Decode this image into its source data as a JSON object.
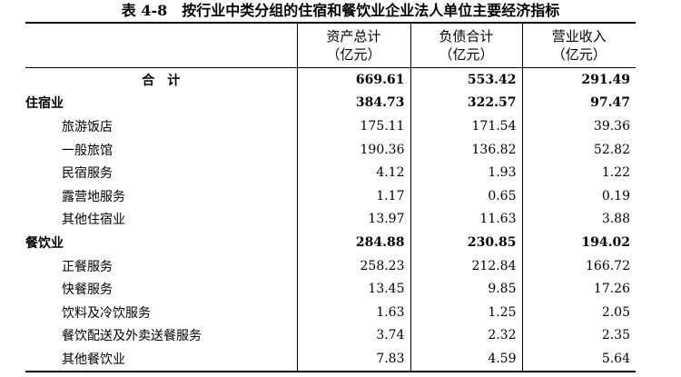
{
  "header": {
    "title": "表 4-8　按行业中类分组的住宿和餐饮业企业法人单位主要经济指标"
  },
  "table": {
    "columns": [
      [
        "资产总计",
        "（亿元）"
      ],
      [
        "负债合计",
        "（亿元）"
      ],
      [
        "营业收入",
        "（亿元）"
      ]
    ],
    "rows": [
      [
        "合　计",
        "669.61",
        "553.42",
        "291.49"
      ],
      [
        "住宿业",
        "384.73",
        "322.57",
        "97.47"
      ],
      [
        "旅游饭店",
        "175.11",
        "171.54",
        "39.36"
      ],
      [
        "一般旅馆",
        "190.36",
        "136.82",
        "52.82"
      ],
      [
        "民宿服务",
        "4.12",
        "1.93",
        "1.22"
      ],
      [
        "露营地服务",
        "1.17",
        "0.65",
        "0.19"
      ],
      [
        "其他住宿业",
        "13.97",
        "11.63",
        "3.88"
      ],
      [
        "餐饮业",
        "284.88",
        "230.85",
        "194.02"
      ],
      [
        "正餐服务",
        "258.23",
        "212.84",
        "166.72"
      ],
      [
        "快餐服务",
        "13.45",
        "9.85",
        "17.26"
      ],
      [
        "饮料及冷饮服务",
        "1.63",
        "1.25",
        "2.05"
      ],
      [
        "餐饮配送及外卖送餐服务",
        "3.74",
        "2.32",
        "2.35"
      ],
      [
        "其他餐饮业",
        "7.83",
        "4.59",
        "5.64"
      ]
    ]
  }
}
